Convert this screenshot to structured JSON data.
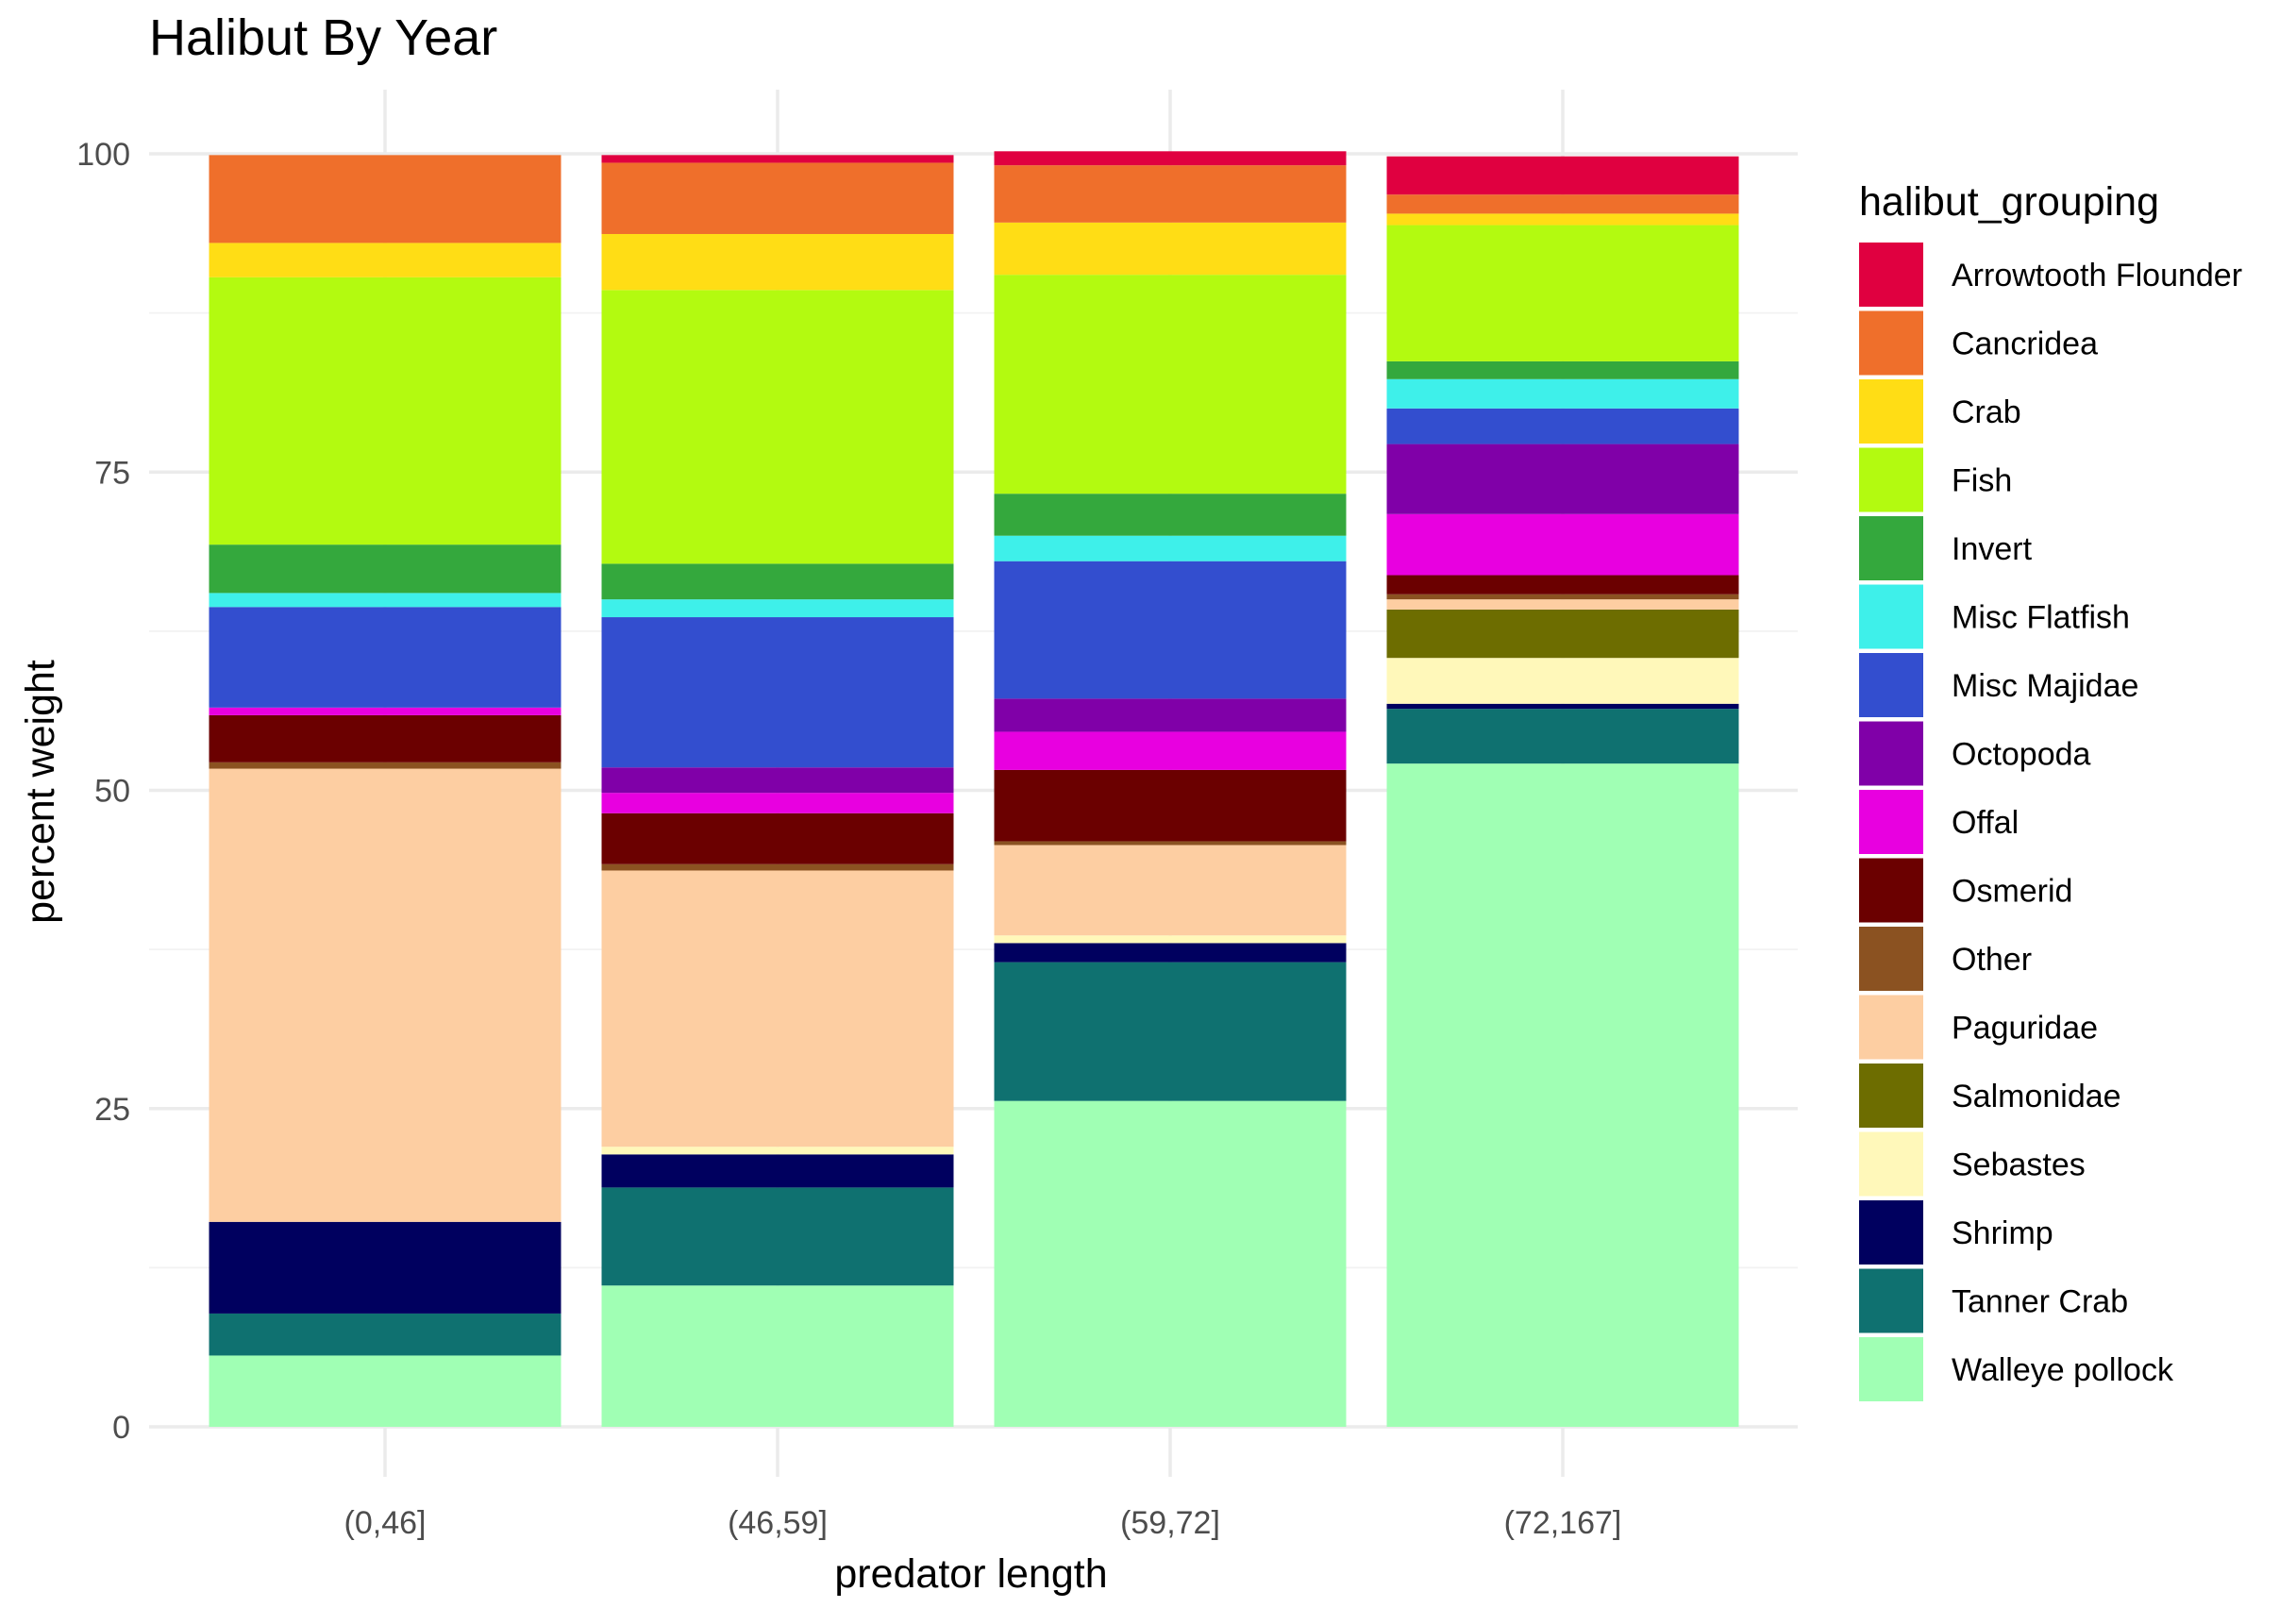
{
  "chart_data": {
    "type": "bar",
    "stacked": true,
    "title": "Halibut By Year",
    "xlabel": "predator length",
    "ylabel": "percent weight",
    "ylim": [
      0,
      100
    ],
    "yticks": [
      0,
      25,
      50,
      75,
      100
    ],
    "grid": true,
    "legend_title": "halibut_grouping",
    "legend_position": "right",
    "categories": [
      "(0,46]",
      "(46,59]",
      "(59,72]",
      "(72,167]"
    ],
    "series": [
      {
        "name": "Walleye pollock",
        "color": "#A0FFB4",
        "values": [
          5.6,
          11.1,
          25.6,
          52.1
        ]
      },
      {
        "name": "Tanner Crab",
        "color": "#0F7170",
        "values": [
          3.3,
          7.7,
          10.9,
          4.3
        ]
      },
      {
        "name": "Shrimp",
        "color": "#00005F",
        "values": [
          7.2,
          2.6,
          1.5,
          0.4
        ]
      },
      {
        "name": "Sebastes",
        "color": "#FFF8BA",
        "values": [
          0.0,
          0.6,
          0.6,
          3.6
        ]
      },
      {
        "name": "Salmonidae",
        "color": "#6D6D00",
        "values": [
          0.0,
          0.0,
          0.0,
          3.8
        ]
      },
      {
        "name": "Paguridae",
        "color": "#FDCEA2",
        "values": [
          35.6,
          21.7,
          7.1,
          0.8
        ]
      },
      {
        "name": "Other",
        "color": "#8B5221",
        "values": [
          0.5,
          0.5,
          0.3,
          0.4
        ]
      },
      {
        "name": "Osmerid",
        "color": "#6B0000",
        "values": [
          3.7,
          4.0,
          5.6,
          1.5
        ]
      },
      {
        "name": "Offal",
        "color": "#E800E0",
        "values": [
          0.6,
          1.6,
          3.0,
          4.8
        ]
      },
      {
        "name": "Octopoda",
        "color": "#8000A8",
        "values": [
          0.0,
          2.0,
          2.6,
          5.5
        ]
      },
      {
        "name": "Misc Majidae",
        "color": "#334ECF",
        "values": [
          7.9,
          11.8,
          10.8,
          2.8
        ]
      },
      {
        "name": "Misc Flatfish",
        "color": "#3EF0EA",
        "values": [
          1.1,
          1.4,
          2.0,
          2.3
        ]
      },
      {
        "name": "Invert",
        "color": "#34A83D",
        "values": [
          3.8,
          2.8,
          3.3,
          1.4
        ]
      },
      {
        "name": "Fish",
        "color": "#B3FA10",
        "values": [
          21.0,
          21.5,
          17.2,
          10.7
        ]
      },
      {
        "name": "Crab",
        "color": "#FFDD15",
        "values": [
          2.7,
          4.4,
          4.1,
          0.9
        ]
      },
      {
        "name": "Cancridea",
        "color": "#EF6F2B",
        "values": [
          6.9,
          5.6,
          4.5,
          1.5
        ]
      },
      {
        "name": "Arrowtooth Flounder",
        "color": "#E00040",
        "values": [
          0.0,
          0.6,
          1.1,
          3.0
        ]
      }
    ]
  }
}
